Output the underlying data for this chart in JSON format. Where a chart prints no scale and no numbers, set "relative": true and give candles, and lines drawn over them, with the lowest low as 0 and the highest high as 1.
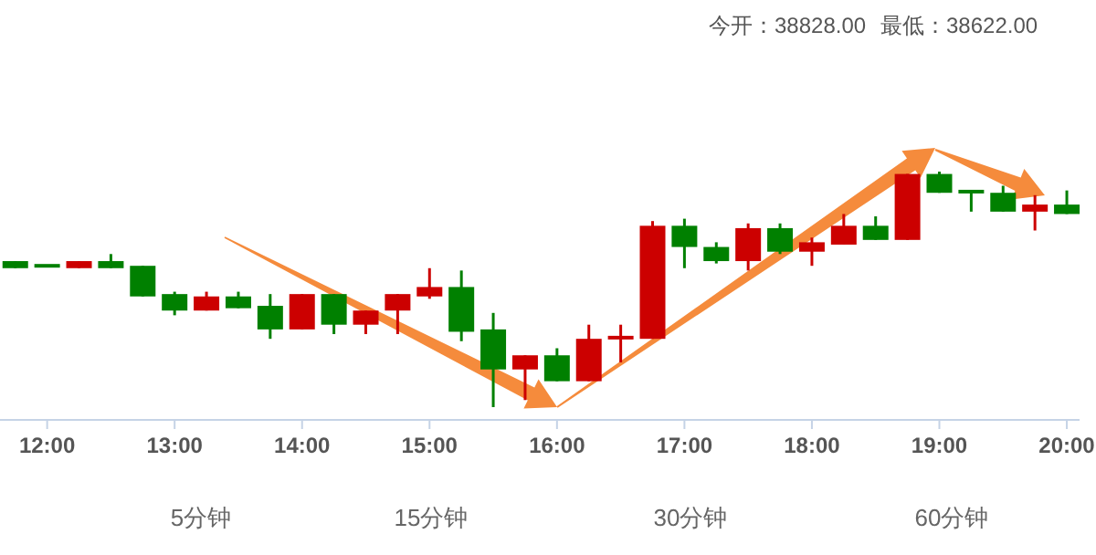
{
  "chart_data": {
    "type": "candlestick",
    "relative": true,
    "x": [
      11.75,
      12,
      12.25,
      12.5,
      12.75,
      13,
      13.25,
      13.5,
      13.75,
      14,
      14.25,
      14.5,
      14.75,
      15,
      15.25,
      15.5,
      15.75,
      16,
      16.25,
      16.5,
      16.75,
      17,
      17.25,
      17.5,
      17.75,
      18,
      18.25,
      18.5,
      18.75,
      19,
      19.25,
      19.5,
      19.75,
      20
    ],
    "ohlc": [
      [
        0.62,
        0.62,
        0.59,
        0.59
      ],
      [
        0.6,
        0.6,
        0.6,
        0.6
      ],
      [
        0.59,
        0.62,
        0.59,
        0.62
      ],
      [
        0.62,
        0.65,
        0.59,
        0.59
      ],
      [
        0.6,
        0.6,
        0.47,
        0.47
      ],
      [
        0.48,
        0.49,
        0.39,
        0.41
      ],
      [
        0.41,
        0.49,
        0.41,
        0.47
      ],
      [
        0.47,
        0.49,
        0.42,
        0.42
      ],
      [
        0.43,
        0.48,
        0.29,
        0.33
      ],
      [
        0.33,
        0.48,
        0.33,
        0.48
      ],
      [
        0.48,
        0.48,
        0.31,
        0.35
      ],
      [
        0.35,
        0.41,
        0.31,
        0.41
      ],
      [
        0.41,
        0.48,
        0.31,
        0.48
      ],
      [
        0.47,
        0.59,
        0.46,
        0.51
      ],
      [
        0.51,
        0.58,
        0.28,
        0.32
      ],
      [
        0.33,
        0.4,
        0,
        0.16
      ],
      [
        0.16,
        0.22,
        0.03,
        0.22
      ],
      [
        0.22,
        0.25,
        0.11,
        0.11
      ],
      [
        0.11,
        0.35,
        0.11,
        0.29
      ],
      [
        0.29,
        0.35,
        0.19,
        0.3
      ],
      [
        0.29,
        0.79,
        0.29,
        0.77
      ],
      [
        0.77,
        0.8,
        0.59,
        0.68
      ],
      [
        0.68,
        0.7,
        0.61,
        0.62
      ],
      [
        0.62,
        0.78,
        0.58,
        0.76
      ],
      [
        0.76,
        0.78,
        0.65,
        0.66
      ],
      [
        0.66,
        0.72,
        0.6,
        0.7
      ],
      [
        0.69,
        0.82,
        0.69,
        0.77
      ],
      [
        0.77,
        0.81,
        0.71,
        0.71
      ],
      [
        0.71,
        0.99,
        0.71,
        0.99
      ],
      [
        0.99,
        1,
        0.91,
        0.91
      ],
      [
        0.92,
        0.92,
        0.83,
        0.91
      ],
      [
        0.91,
        0.94,
        0.83,
        0.83
      ],
      [
        0.83,
        0.9,
        0.75,
        0.86
      ],
      [
        0.86,
        0.92,
        0.82,
        0.82
      ]
    ],
    "colors": [
      "#008000",
      "#008000",
      "#cc0000",
      "#008000",
      "#008000",
      "#008000",
      "#cc0000",
      "#008000",
      "#008000",
      "#cc0000",
      "#008000",
      "#cc0000",
      "#cc0000",
      "#cc0000",
      "#008000",
      "#008000",
      "#cc0000",
      "#008000",
      "#cc0000",
      "#cc0000",
      "#cc0000",
      "#008000",
      "#008000",
      "#cc0000",
      "#008000",
      "#cc0000",
      "#cc0000",
      "#008000",
      "#cc0000",
      "#008000",
      "#008000",
      "#008000",
      "#cc0000",
      "#008000"
    ],
    "xlim": [
      11.63,
      20.1
    ],
    "xticks": [
      {
        "value": 12,
        "label": "12:00"
      },
      {
        "value": 13,
        "label": "13:00"
      },
      {
        "value": 14,
        "label": "14:00"
      },
      {
        "value": 15,
        "label": "15:00"
      },
      {
        "value": 16,
        "label": "16:00"
      },
      {
        "value": 17,
        "label": "17:00"
      },
      {
        "value": 18,
        "label": "18:00"
      },
      {
        "value": 19,
        "label": "19:00"
      },
      {
        "value": 20,
        "label": "20:00"
      }
    ],
    "tick_labels": "x",
    "annotations": [
      "今开：38828.00",
      "最低：38622.00",
      "5分钟",
      "15分钟",
      "30分钟",
      "60分钟"
    ]
  }
}
